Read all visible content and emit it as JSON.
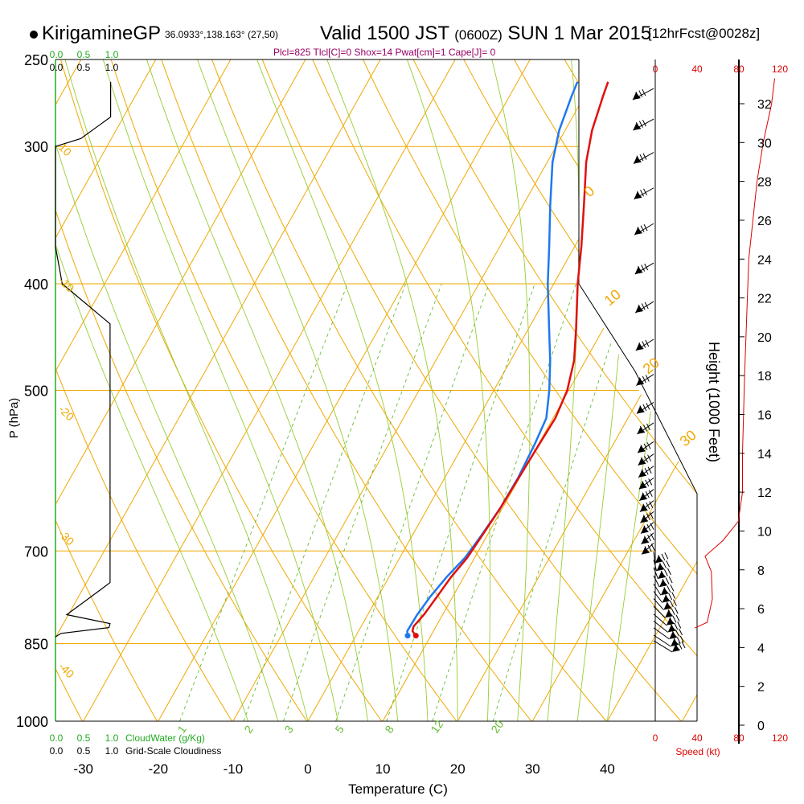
{
  "header": {
    "station": "KirigamineGP",
    "coords": "36.0933°,138.163° (27,50)",
    "valid": "Valid 1500 JST",
    "utc": "(0600Z)",
    "date": "SUN 1 Mar 2015",
    "forecast": "[12hrFcst@0028z]",
    "indices": "Plcl=825 Tlcl[C]=0 Shox=14 Pwat[cm]=1 Cape[J]= 0"
  },
  "colors": {
    "isobar": "#f0a800",
    "isotherm": "#f0a800",
    "dry_adiabat": "#f0a800",
    "moist_adiabat": "#99cc33",
    "mixing_ratio": "#66bb33",
    "temperature": "#e01010",
    "dewpoint": "#1e78f0",
    "cloud_green": "#22aa22",
    "speed_red": "#dd0000"
  },
  "chart_data": {
    "type": "skew-t",
    "xlabel": "Temperature (C)",
    "ylabel": "P (hPa)",
    "right_axis_label": "Height (1000 Feet)",
    "x_ticks": [
      -30,
      -20,
      -10,
      0,
      10,
      20,
      30,
      40
    ],
    "p_ticks": [
      250,
      300,
      400,
      500,
      700,
      850,
      1000
    ],
    "height_ticks": [
      0,
      2,
      4,
      6,
      8,
      10,
      12,
      14,
      16,
      18,
      20,
      22,
      24,
      26,
      28,
      30,
      32
    ],
    "plim": [
      250,
      1000
    ],
    "xlim_bottom": [
      -34,
      44
    ],
    "temperature": [
      {
        "p": 836,
        "t": 8.0
      },
      {
        "p": 828,
        "t": 7.2
      },
      {
        "p": 820,
        "t": 7.0
      },
      {
        "p": 800,
        "t": 7.5
      },
      {
        "p": 770,
        "t": 7.9
      },
      {
        "p": 740,
        "t": 8.3
      },
      {
        "p": 710,
        "t": 9.0
      },
      {
        "p": 680,
        "t": 9.3
      },
      {
        "p": 640,
        "t": 9.7
      },
      {
        "p": 600,
        "t": 9.9
      },
      {
        "p": 560,
        "t": 10.1
      },
      {
        "p": 530,
        "t": 10.3
      },
      {
        "p": 500,
        "t": 9.8
      },
      {
        "p": 470,
        "t": 8.5
      },
      {
        "p": 440,
        "t": 6.4
      },
      {
        "p": 400,
        "t": 3.2
      },
      {
        "p": 370,
        "t": 0.9
      },
      {
        "p": 340,
        "t": -1.8
      },
      {
        "p": 310,
        "t": -4.8
      },
      {
        "p": 290,
        "t": -6.4
      },
      {
        "p": 270,
        "t": -7.5
      },
      {
        "p": 262,
        "t": -7.9
      }
    ],
    "dewpoint": [
      {
        "p": 836,
        "t": 6.9
      },
      {
        "p": 828,
        "t": 6.5
      },
      {
        "p": 800,
        "t": 6.6
      },
      {
        "p": 770,
        "t": 7.0
      },
      {
        "p": 740,
        "t": 7.7
      },
      {
        "p": 710,
        "t": 8.7
      },
      {
        "p": 680,
        "t": 9.2
      },
      {
        "p": 640,
        "t": 9.7
      },
      {
        "p": 600,
        "t": 9.8
      },
      {
        "p": 560,
        "t": 9.5
      },
      {
        "p": 530,
        "t": 9.1
      },
      {
        "p": 500,
        "t": 7.4
      },
      {
        "p": 470,
        "t": 5.3
      },
      {
        "p": 440,
        "t": 2.8
      },
      {
        "p": 400,
        "t": -0.8
      },
      {
        "p": 370,
        "t": -3.4
      },
      {
        "p": 340,
        "t": -6.3
      },
      {
        "p": 310,
        "t": -9.3
      },
      {
        "p": 290,
        "t": -10.8
      },
      {
        "p": 270,
        "t": -11.7
      },
      {
        "p": 262,
        "t": -12.0
      }
    ],
    "dry_adiabat_labels": [
      "0",
      "10",
      "20",
      "30"
    ],
    "left_isotherm_labels": [
      "-10",
      "-20",
      "-30",
      "-40"
    ],
    "mixing_ratio_labels": [
      "1",
      "2",
      "3",
      "5",
      "8",
      "12",
      "20"
    ],
    "cloud_scale_green": [
      "0.0",
      "0.5",
      "1.0"
    ],
    "cloud_scale_black": [
      "0.0",
      "0.5",
      "1.0"
    ],
    "cloud_water_label": "CloudWater (g/Kg)",
    "cloudiness_label": "Grid-Scale Cloudiness",
    "speed_ticks": [
      "0",
      "40",
      "80",
      "120"
    ],
    "speed_label": "Speed (kt)",
    "cloudiness_profile": [
      {
        "p": 282,
        "c": 0.98
      },
      {
        "p": 295,
        "c": 0.45
      },
      {
        "p": 300,
        "c": 0.0
      },
      {
        "p": 370,
        "c": 0.0
      },
      {
        "p": 400,
        "c": 0.12
      },
      {
        "p": 435,
        "c": 0.97
      },
      {
        "p": 748,
        "c": 0.97
      },
      {
        "p": 758,
        "c": 0.82
      },
      {
        "p": 800,
        "c": 0.2
      },
      {
        "p": 815,
        "c": 0.97
      },
      {
        "p": 822,
        "c": 0.95
      },
      {
        "p": 832,
        "c": 0.1
      },
      {
        "p": 838,
        "c": 0.0
      }
    ],
    "speed_profile": [
      {
        "h": 5.0,
        "s": 38
      },
      {
        "h": 5.3,
        "s": 50
      },
      {
        "h": 6.5,
        "s": 55
      },
      {
        "h": 7.9,
        "s": 54
      },
      {
        "h": 8.7,
        "s": 48
      },
      {
        "h": 9.5,
        "s": 65
      },
      {
        "h": 10.5,
        "s": 80
      },
      {
        "h": 12.0,
        "s": 84
      },
      {
        "h": 14.0,
        "s": 84
      },
      {
        "h": 18.0,
        "s": 86
      },
      {
        "h": 24.0,
        "s": 90
      },
      {
        "h": 28.0,
        "s": 98
      },
      {
        "h": 30.0,
        "s": 104
      },
      {
        "h": 32.0,
        "s": 112
      },
      {
        "h": 33.3,
        "s": 115
      }
    ],
    "wind_barb_pressures": [
      272,
      290,
      311,
      335,
      361,
      392,
      425,
      460,
      495,
      525,
      548,
      570,
      585,
      600,
      615,
      630,
      645,
      660,
      675,
      690,
      705,
      718,
      730,
      742,
      755,
      768,
      780,
      792,
      805,
      818,
      830,
      842,
      855,
      865
    ]
  }
}
